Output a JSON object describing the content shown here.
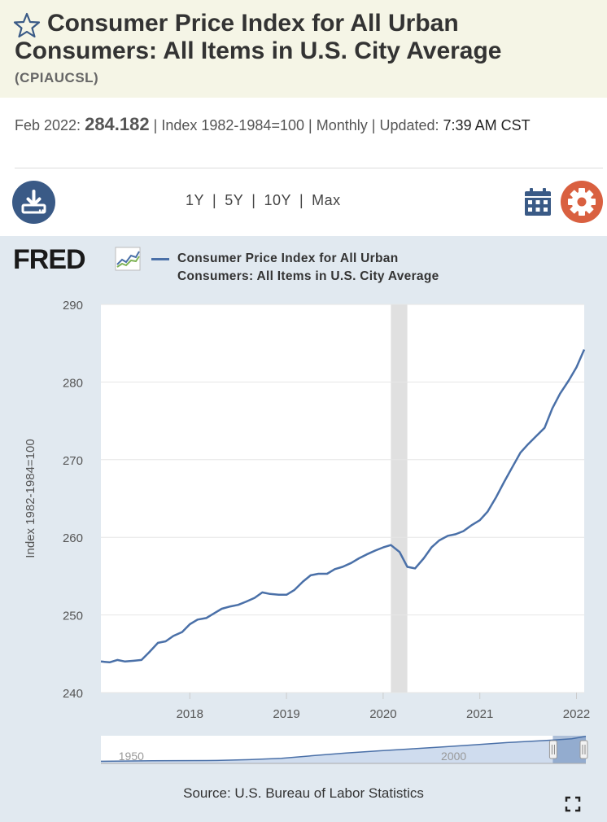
{
  "header": {
    "title": "Consumer Price Index for All Urban Consumers: All Items in U.S. City Average",
    "series_id": "(CPIAUCSL)"
  },
  "meta": {
    "date_label": "Feb 2022:",
    "value": "284.182",
    "sep1": "|",
    "units": "Index 1982-1984=100",
    "sep2": "|",
    "frequency": "Monthly",
    "sep3": "|",
    "updated_label": "Updated:",
    "updated_time": "7:39 AM",
    "timezone": "CST"
  },
  "toolbar": {
    "ranges": [
      "1Y",
      "5Y",
      "10Y",
      "Max"
    ],
    "separator": "|"
  },
  "colors": {
    "series": "#4a70a8",
    "recession": "#e0e0e0",
    "download_button": "#3a5a86",
    "settings_button": "#d96040",
    "calendar_icon": "#3a5a86"
  },
  "chart_data": {
    "type": "line",
    "logo": "FRED",
    "legend": "Consumer Price Index for All Urban Consumers: All Items in U.S. City Average",
    "ylabel": "Index 1982-1984=100",
    "ylim": [
      240,
      290
    ],
    "yticks": [
      240,
      250,
      260,
      270,
      280,
      290
    ],
    "xlim": [
      2017.08,
      2022.08
    ],
    "xticks": [
      2018,
      2019,
      2020,
      2021,
      2022
    ],
    "recession": [
      2020.08,
      2020.25
    ],
    "series": [
      {
        "name": "CPIAUCSL",
        "x": [
          2017.08,
          2017.17,
          2017.25,
          2017.33,
          2017.42,
          2017.5,
          2017.58,
          2017.67,
          2017.75,
          2017.83,
          2017.92,
          2018.0,
          2018.08,
          2018.17,
          2018.25,
          2018.33,
          2018.42,
          2018.5,
          2018.58,
          2018.67,
          2018.75,
          2018.83,
          2018.92,
          2019.0,
          2019.08,
          2019.17,
          2019.25,
          2019.33,
          2019.42,
          2019.5,
          2019.58,
          2019.67,
          2019.75,
          2019.83,
          2019.92,
          2020.0,
          2020.08,
          2020.17,
          2020.25,
          2020.33,
          2020.42,
          2020.5,
          2020.58,
          2020.67,
          2020.75,
          2020.83,
          2020.92,
          2021.0,
          2021.08,
          2021.17,
          2021.25,
          2021.33,
          2021.42,
          2021.5,
          2021.58,
          2021.67,
          2021.75,
          2021.83,
          2021.92,
          2022.0,
          2022.08
        ],
        "values": [
          244.0,
          243.9,
          244.2,
          244.0,
          244.1,
          244.2,
          245.2,
          246.4,
          246.6,
          247.3,
          247.8,
          248.8,
          249.4,
          249.6,
          250.2,
          250.8,
          251.1,
          251.3,
          251.7,
          252.2,
          252.9,
          252.7,
          252.6,
          252.6,
          253.2,
          254.3,
          255.1,
          255.3,
          255.3,
          255.9,
          256.2,
          256.7,
          257.3,
          257.8,
          258.3,
          258.7,
          259.0,
          258.1,
          256.2,
          256.0,
          257.3,
          258.7,
          259.6,
          260.2,
          260.4,
          260.8,
          261.6,
          262.2,
          263.3,
          265.2,
          267.1,
          268.9,
          270.9,
          272.0,
          273.0,
          274.1,
          276.6,
          278.5,
          280.2,
          281.9,
          284.182
        ]
      }
    ],
    "navigator": {
      "labels": [
        "1950",
        "2000"
      ],
      "xlim": [
        1947,
        2022.2
      ],
      "label_x": [
        1950,
        2000
      ],
      "x": [
        1947,
        1955,
        1965,
        1970,
        1975,
        1980,
        1985,
        1990,
        1995,
        2000,
        2005,
        2010,
        2015,
        2017,
        2020,
        2022.2
      ],
      "values": [
        22,
        27,
        31,
        39,
        54,
        82,
        108,
        131,
        152,
        172,
        195,
        218,
        237,
        244,
        258,
        284
      ],
      "ylim": [
        0,
        290
      ],
      "selection": [
        2017.08,
        2022.2
      ]
    },
    "source": "Source: U.S. Bureau of Labor Statistics"
  }
}
